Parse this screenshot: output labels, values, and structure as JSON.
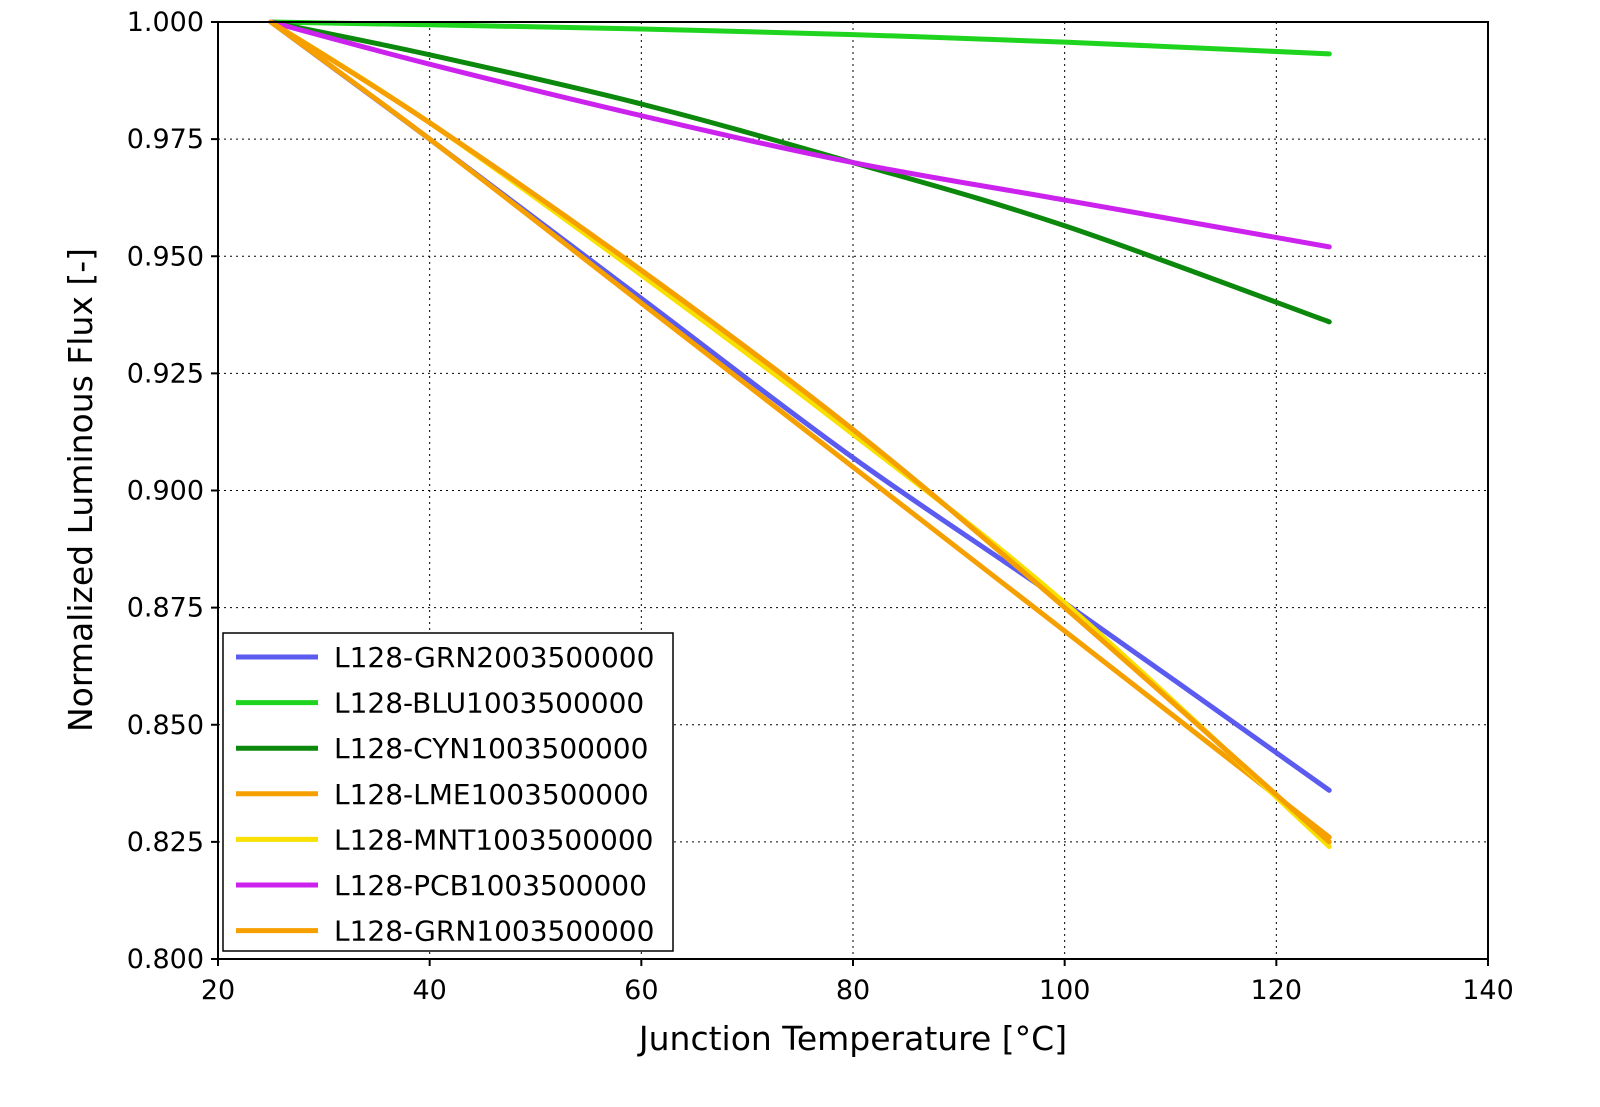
{
  "chart_data": {
    "type": "line",
    "title": "",
    "xlabel": "Junction Temperature [°C]",
    "ylabel": "Normalized Luminous Flux [-]",
    "xlim": [
      20,
      140
    ],
    "ylim": [
      0.8,
      1.0
    ],
    "xticks": [
      20,
      40,
      60,
      80,
      100,
      120,
      140
    ],
    "yticks": [
      0.8,
      0.825,
      0.85,
      0.875,
      0.9,
      0.925,
      0.95,
      0.975,
      1.0
    ],
    "xtick_labels": [
      "20",
      "40",
      "60",
      "80",
      "100",
      "120",
      "140"
    ],
    "ytick_labels": [
      "0.800",
      "0.825",
      "0.850",
      "0.875",
      "0.900",
      "0.925",
      "0.950",
      "0.975",
      "1.000"
    ],
    "grid": true,
    "legend_position": "bottom-left",
    "series": [
      {
        "name": "L128-GRN2003500000",
        "color": "#5b5bef",
        "x": [
          25,
          40,
          60,
          80,
          100,
          125
        ],
        "y": [
          1.0,
          0.975,
          0.941,
          0.907,
          0.876,
          0.836
        ]
      },
      {
        "name": "L128-BLU1003500000",
        "color": "#1ed41e",
        "x": [
          25,
          40,
          60,
          80,
          100,
          125
        ],
        "y": [
          1.0,
          0.9994,
          0.9985,
          0.9973,
          0.9957,
          0.9932
        ]
      },
      {
        "name": "L128-CYN1003500000",
        "color": "#0c880c",
        "x": [
          25,
          40,
          60,
          80,
          100,
          125
        ],
        "y": [
          1.0,
          0.993,
          0.9825,
          0.97,
          0.9565,
          0.936
        ]
      },
      {
        "name": "L128-LME1003500000",
        "color": "#f5a000",
        "x": [
          25,
          40,
          60,
          80,
          100,
          125
        ],
        "y": [
          1.0,
          0.975,
          0.94,
          0.905,
          0.87,
          0.826
        ]
      },
      {
        "name": "L128-MNT1003500000",
        "color": "#f8e000",
        "x": [
          25,
          40,
          60,
          80,
          100,
          125
        ],
        "y": [
          1.0,
          0.9785,
          0.946,
          0.912,
          0.876,
          0.824
        ]
      },
      {
        "name": "L128-PCB1003500000",
        "color": "#cc22ee",
        "x": [
          25,
          40,
          60,
          80,
          100,
          125
        ],
        "y": [
          1.0,
          0.991,
          0.98,
          0.97,
          0.962,
          0.952
        ]
      },
      {
        "name": "L128-GRN1003500000",
        "color": "#f59f00",
        "x": [
          25,
          40,
          60,
          80,
          100,
          125
        ],
        "y": [
          1.0,
          0.9785,
          0.947,
          0.913,
          0.875,
          0.825
        ]
      }
    ]
  }
}
